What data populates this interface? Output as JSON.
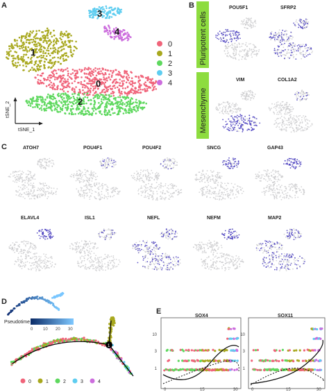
{
  "panel_labels": {
    "a": "A",
    "b": "B",
    "c": "C",
    "d": "D",
    "e": "E"
  },
  "tsne": {
    "x_axis_label": "tSNE_1",
    "y_axis_label": "tSNE_2",
    "clusters": [
      {
        "id": "0",
        "label": "0",
        "color": "#f0647a"
      },
      {
        "id": "1",
        "label": "1",
        "color": "#a8a81e"
      },
      {
        "id": "2",
        "label": "2",
        "color": "#5ed85e"
      },
      {
        "id": "3",
        "label": "3",
        "color": "#5ecdf0"
      },
      {
        "id": "4",
        "label": "4",
        "color": "#cc6ddd"
      }
    ]
  },
  "panel_b": {
    "row_labels": [
      "Pluripotent cells",
      "Mesenchyme"
    ],
    "row_colors": [
      "#8ddc3f",
      "#8ddc3f"
    ],
    "genes": [
      "POU5F1",
      "SFRP2",
      "VIM",
      "COL1A2"
    ]
  },
  "panel_c": {
    "genes_row1": [
      "ATOH7",
      "POU4F1",
      "POU4F2",
      "SNCG",
      "GAP43"
    ],
    "genes_row2": [
      "ELAVL4",
      "ISL1",
      "NEFL",
      "NEFM",
      "MAP2"
    ]
  },
  "panel_d": {
    "pseudotime_label": "Pseudotime",
    "pseudotime_ticks": [
      "0",
      "10",
      "20",
      "30"
    ],
    "branch_point": "1",
    "legend": [
      "0",
      "1",
      "2",
      "3",
      "4"
    ]
  },
  "chart_data": [
    {
      "type": "scatter",
      "title": "SOX4",
      "x_ticks": [
        "0",
        "15",
        "30"
      ],
      "y_ticks": [
        "1",
        "3",
        "10"
      ],
      "xlim": [
        0,
        30
      ],
      "y_scale": "log",
      "series": [
        {
          "name": "0",
          "color": "#f0647a"
        },
        {
          "name": "1",
          "color": "#a8a81e"
        },
        {
          "name": "2",
          "color": "#5ed85e"
        },
        {
          "name": "3",
          "color": "#5ecdf0"
        },
        {
          "name": "4",
          "color": "#cc6ddd"
        }
      ]
    },
    {
      "type": "scatter",
      "title": "SOX11",
      "x_ticks": [
        "0",
        "15",
        "30"
      ],
      "y_ticks": [
        "1",
        "3",
        "10"
      ],
      "xlim": [
        0,
        30
      ],
      "y_scale": "log"
    }
  ]
}
